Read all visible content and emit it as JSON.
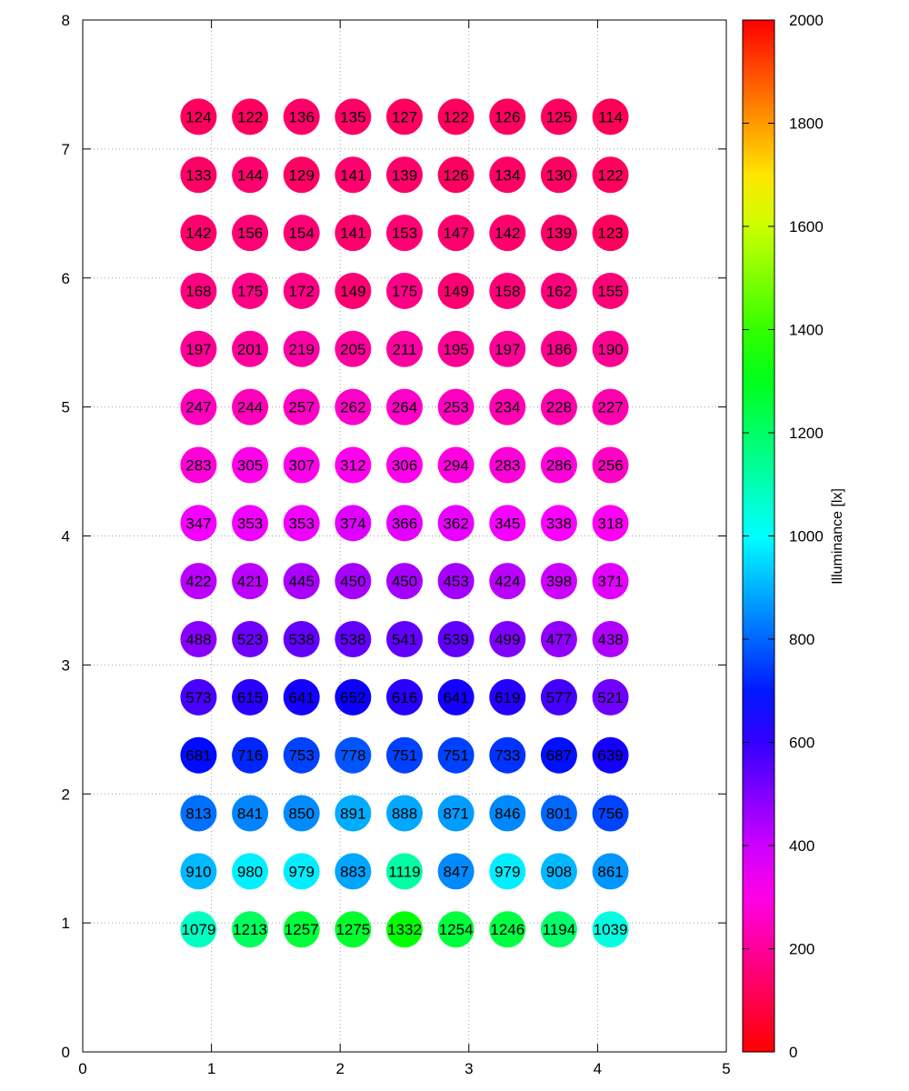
{
  "chart_data": {
    "type": "scatter",
    "title": "",
    "xlabel": "",
    "ylabel": "",
    "xlim": [
      0,
      5
    ],
    "ylim": [
      0,
      8
    ],
    "xticks": [
      "0",
      "1",
      "2",
      "3",
      "4",
      "5"
    ],
    "yticks": [
      "0",
      "1",
      "2",
      "3",
      "4",
      "5",
      "6",
      "7",
      "8"
    ],
    "grid": true,
    "colorbar": {
      "label": "Illuminance [lx]",
      "range": [
        0,
        2000
      ],
      "ticks": [
        "0",
        "200",
        "400",
        "600",
        "800",
        "1000",
        "1200",
        "1400",
        "1600",
        "1800",
        "2000"
      ]
    },
    "x": [
      0.9,
      1.3,
      1.7,
      2.1,
      2.5,
      2.9,
      3.3,
      3.7,
      4.1
    ],
    "y": [
      7.25,
      6.8,
      6.35,
      5.9,
      5.45,
      5.0,
      4.55,
      4.1,
      3.65,
      3.2,
      2.75,
      2.3,
      1.85,
      1.4,
      0.95
    ],
    "values": [
      [
        124,
        122,
        136,
        135,
        127,
        122,
        126,
        125,
        114
      ],
      [
        133,
        144,
        129,
        141,
        139,
        126,
        134,
        130,
        122
      ],
      [
        142,
        156,
        154,
        141,
        153,
        147,
        142,
        139,
        123
      ],
      [
        168,
        175,
        172,
        149,
        175,
        149,
        158,
        162,
        155
      ],
      [
        197,
        201,
        219,
        205,
        211,
        195,
        197,
        186,
        190
      ],
      [
        247,
        244,
        257,
        262,
        264,
        253,
        234,
        228,
        227
      ],
      [
        283,
        305,
        307,
        312,
        306,
        294,
        283,
        286,
        256
      ],
      [
        347,
        353,
        353,
        374,
        366,
        362,
        345,
        338,
        318
      ],
      [
        422,
        421,
        445,
        450,
        450,
        453,
        424,
        398,
        371
      ],
      [
        488,
        523,
        538,
        538,
        541,
        539,
        499,
        477,
        438
      ],
      [
        573,
        615,
        641,
        652,
        616,
        641,
        619,
        577,
        521
      ],
      [
        681,
        716,
        753,
        778,
        751,
        751,
        733,
        687,
        639
      ],
      [
        813,
        841,
        850,
        891,
        888,
        871,
        846,
        801,
        756
      ],
      [
        910,
        980,
        979,
        883,
        1119,
        847,
        979,
        908,
        861
      ],
      [
        1079,
        1213,
        1257,
        1275,
        1332,
        1254,
        1246,
        1194,
        1039
      ]
    ]
  }
}
